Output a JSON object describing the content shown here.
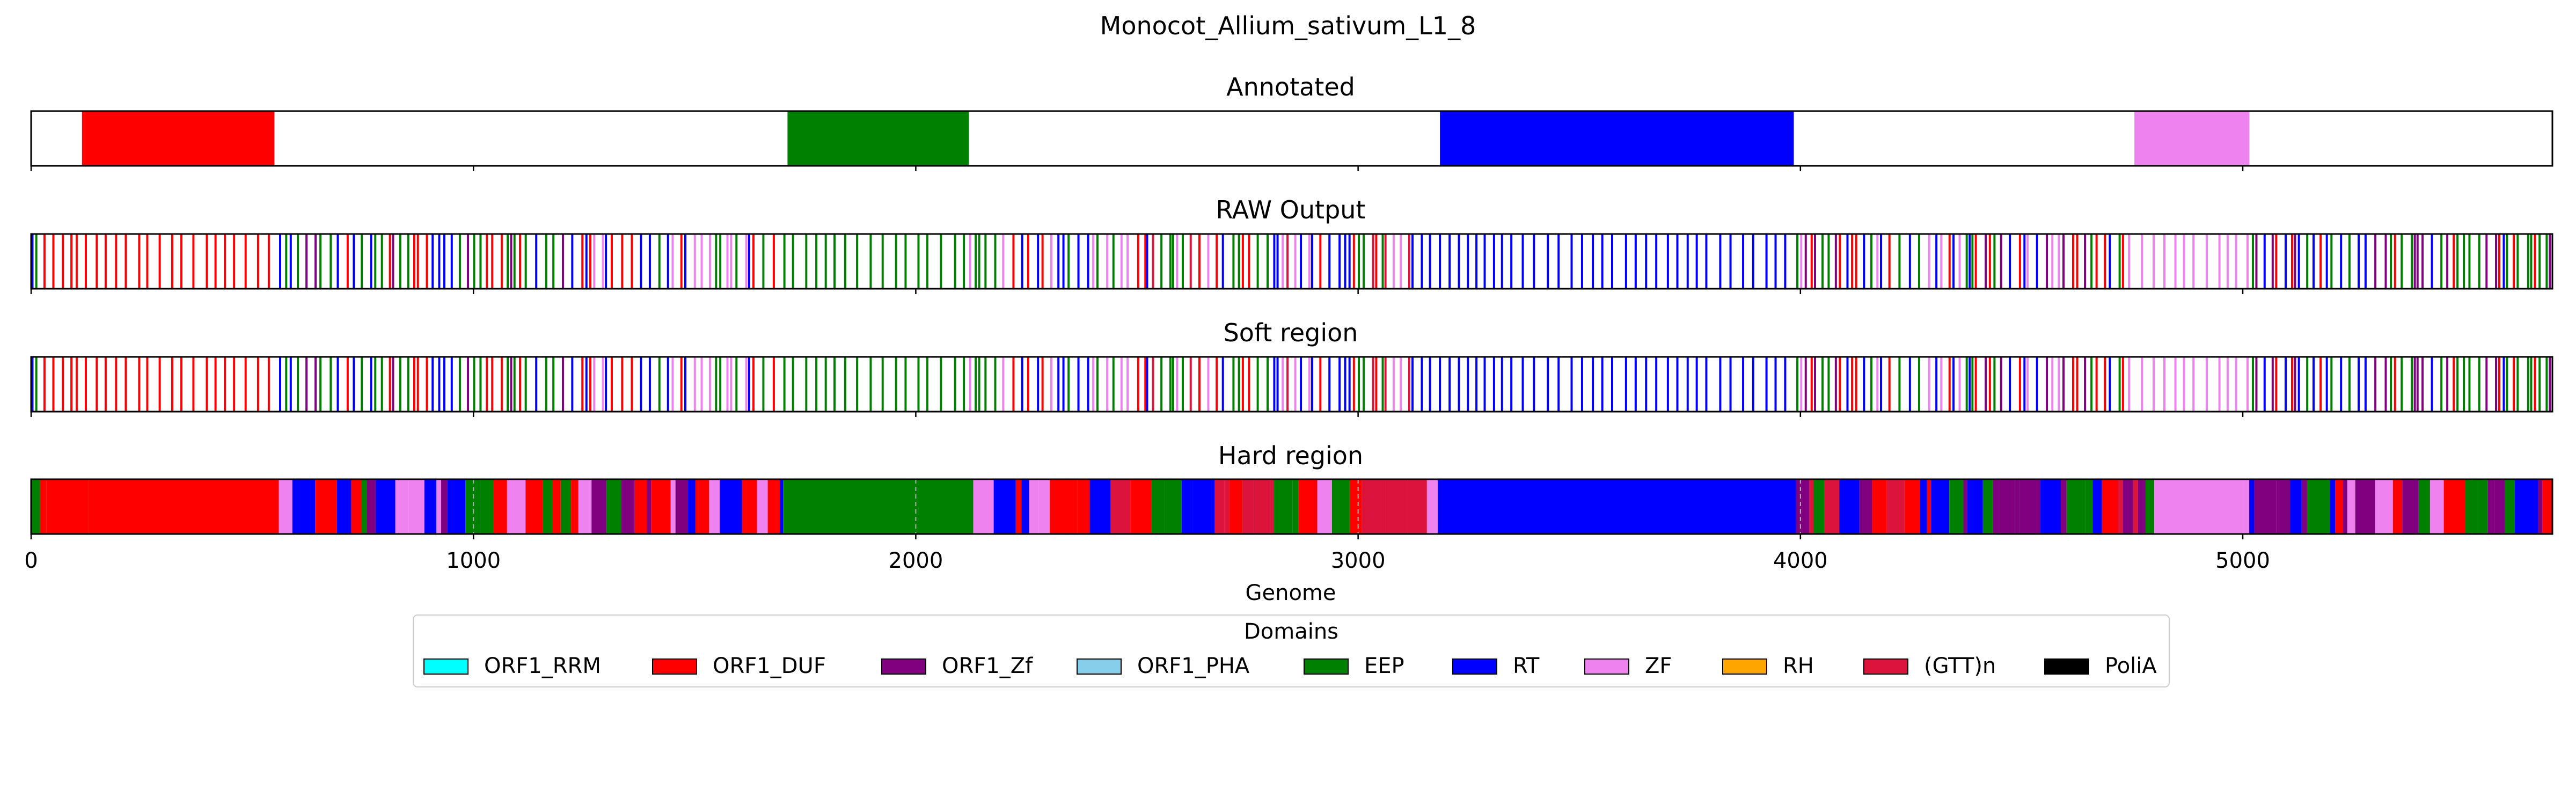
{
  "colors": {
    "ORF1_RRM": "#00ffff",
    "ORF1_DUF": "#ff0000",
    "ORF1_Zf": "#800080",
    "ORF1_PHA": "#87ceeb",
    "EEP": "#008000",
    "RT": "#0000ff",
    "ZF": "#ee82ee",
    "RH": "#ffa500",
    "(GTT)n": "#dc143c",
    "PoliA": "#000000"
  },
  "chart_data": {
    "type": "genome-track",
    "title": "Monocot_Allium_sativum_L1_8",
    "xlabel": "Genome",
    "xlim": [
      0,
      5700
    ],
    "xticks": [
      0,
      1000,
      2000,
      3000,
      4000,
      5000
    ],
    "xtick_labels": [
      "0",
      "1000",
      "2000",
      "3000",
      "4000",
      "5000"
    ],
    "grid": "vertical dashed at 1000, 2000, 3000, 4000 on Hard region panel",
    "legend": {
      "title": "Domains",
      "placement": "bottom-center",
      "entries": [
        "ORF1_RRM",
        "ORF1_DUF",
        "ORF1_Zf",
        "ORF1_PHA",
        "EEP",
        "RT",
        "ZF",
        "RH",
        "(GTT)n",
        "PoliA"
      ]
    },
    "panels": [
      {
        "title": "Annotated",
        "segments": [
          {
            "start": 115,
            "end": 550,
            "domain": "ORF1_DUF"
          },
          {
            "start": 1710,
            "end": 2120,
            "domain": "EEP"
          },
          {
            "start": 3185,
            "end": 3985,
            "domain": "RT"
          },
          {
            "start": 4755,
            "end": 5015,
            "domain": "ZF"
          }
        ]
      },
      {
        "title": "RAW Output",
        "style": "thin lines",
        "bands": [
          {
            "start": 0,
            "end": 100,
            "domains": [
              "EEP",
              "RT",
              "ORF1_DUF",
              "ORF1_Zf"
            ]
          },
          {
            "start": 100,
            "end": 560,
            "domains": [
              "ORF1_DUF"
            ]
          },
          {
            "start": 560,
            "end": 1270,
            "domains": [
              "RT",
              "EEP",
              "ORF1_Zf",
              "ORF1_DUF"
            ]
          },
          {
            "start": 1270,
            "end": 1700,
            "domains": [
              "EEP",
              "RT",
              "ZF",
              "ORF1_DUF"
            ]
          },
          {
            "start": 1700,
            "end": 2120,
            "domains": [
              "EEP"
            ]
          },
          {
            "start": 2120,
            "end": 2520,
            "domains": [
              "EEP",
              "RT",
              "ORF1_DUF",
              "ZF"
            ]
          },
          {
            "start": 2520,
            "end": 3120,
            "domains": [
              "RT",
              "EEP",
              "ZF",
              "ORF1_DUF",
              "(GTT)n"
            ]
          },
          {
            "start": 3120,
            "end": 3990,
            "domains": [
              "RT"
            ]
          },
          {
            "start": 3990,
            "end": 4740,
            "domains": [
              "RT",
              "EEP",
              "ORF1_DUF",
              "ORF1_Zf",
              "ZF"
            ]
          },
          {
            "start": 4740,
            "end": 5020,
            "domains": [
              "ZF"
            ]
          },
          {
            "start": 5020,
            "end": 5700,
            "domains": [
              "RT",
              "EEP",
              "ORF1_DUF",
              "ORF1_Zf"
            ]
          }
        ]
      },
      {
        "title": "Soft region",
        "style": "thin lines",
        "bands": [
          {
            "start": 0,
            "end": 100,
            "domains": [
              "EEP",
              "RT",
              "ORF1_DUF",
              "ORF1_Zf"
            ]
          },
          {
            "start": 100,
            "end": 560,
            "domains": [
              "ORF1_DUF"
            ]
          },
          {
            "start": 560,
            "end": 1270,
            "domains": [
              "RT",
              "EEP",
              "ORF1_Zf",
              "ORF1_DUF"
            ]
          },
          {
            "start": 1270,
            "end": 1700,
            "domains": [
              "EEP",
              "RT",
              "ZF",
              "ORF1_DUF"
            ]
          },
          {
            "start": 1700,
            "end": 2120,
            "domains": [
              "EEP"
            ]
          },
          {
            "start": 2120,
            "end": 2520,
            "domains": [
              "EEP",
              "RT",
              "ORF1_DUF",
              "ZF"
            ]
          },
          {
            "start": 2520,
            "end": 3120,
            "domains": [
              "RT",
              "EEP",
              "ZF",
              "ORF1_DUF",
              "(GTT)n"
            ]
          },
          {
            "start": 3120,
            "end": 3990,
            "domains": [
              "RT"
            ]
          },
          {
            "start": 3990,
            "end": 4740,
            "domains": [
              "RT",
              "EEP",
              "ORF1_DUF",
              "ORF1_Zf",
              "ZF"
            ]
          },
          {
            "start": 4740,
            "end": 5020,
            "domains": [
              "ZF"
            ]
          },
          {
            "start": 5020,
            "end": 5700,
            "domains": [
              "RT",
              "EEP",
              "ORF1_DUF",
              "ORF1_Zf"
            ]
          }
        ]
      },
      {
        "title": "Hard region",
        "style": "filled",
        "bands": [
          {
            "start": 0,
            "end": 130,
            "domains": [
              "EEP",
              "RT",
              "ORF1_DUF"
            ]
          },
          {
            "start": 130,
            "end": 560,
            "domains": [
              "ORF1_DUF"
            ]
          },
          {
            "start": 560,
            "end": 1700,
            "domains": [
              "RT",
              "EEP",
              "ORF1_DUF",
              "ZF",
              "ORF1_Zf"
            ]
          },
          {
            "start": 1700,
            "end": 2130,
            "domains": [
              "EEP"
            ]
          },
          {
            "start": 2130,
            "end": 3180,
            "domains": [
              "EEP",
              "RT",
              "ORF1_DUF",
              "ZF",
              "(GTT)n"
            ]
          },
          {
            "start": 3180,
            "end": 3990,
            "domains": [
              "RT"
            ]
          },
          {
            "start": 3990,
            "end": 4800,
            "domains": [
              "RT",
              "EEP",
              "ORF1_DUF",
              "(GTT)n",
              "ORF1_Zf"
            ]
          },
          {
            "start": 4800,
            "end": 5000,
            "domains": [
              "ZF"
            ]
          },
          {
            "start": 5000,
            "end": 5700,
            "domains": [
              "RT",
              "EEP",
              "ORF1_DUF",
              "ZF",
              "ORF1_Zf"
            ]
          }
        ]
      }
    ]
  }
}
